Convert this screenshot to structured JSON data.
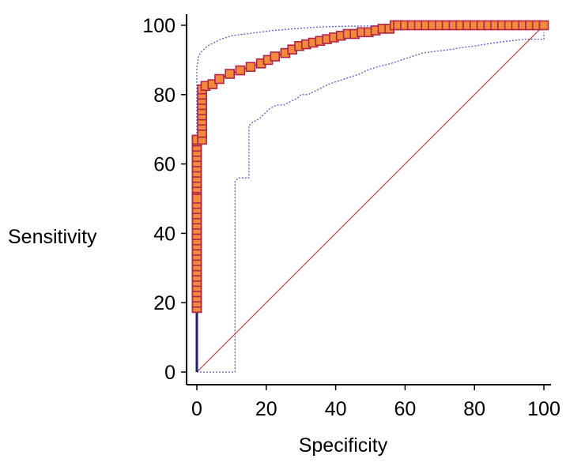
{
  "chart_data": {
    "type": "line",
    "title": "",
    "xlabel": "Specificity",
    "ylabel": "Sensitivity",
    "xlim": [
      0,
      100
    ],
    "ylim": [
      0,
      100
    ],
    "xticks": [
      0,
      20,
      40,
      60,
      80,
      100
    ],
    "yticks": [
      0,
      20,
      40,
      60,
      80,
      100
    ],
    "grid": false,
    "colors": {
      "roc_marker_fill": "#f28a3c",
      "roc_marker_stroke": "#b2234a",
      "roc_line": "#1f1f7a",
      "ci_line": "#5a5ad2",
      "reference_line": "#c0504d"
    },
    "series": [
      {
        "name": "ROC curve",
        "style": "step-markers",
        "x": [
          0,
          0,
          0,
          0,
          0,
          0,
          0,
          0,
          0,
          0,
          0,
          0,
          0,
          0,
          0,
          0,
          0,
          0,
          0,
          0,
          0,
          0,
          0,
          0,
          0,
          0,
          0,
          0,
          0,
          0,
          0,
          0,
          0,
          0,
          0,
          0,
          0,
          0,
          0,
          0,
          0,
          0,
          0,
          0,
          0,
          0,
          0,
          0,
          0,
          0,
          0,
          0,
          0,
          0,
          0,
          0,
          0,
          0,
          0,
          0,
          0,
          0,
          0,
          0,
          0,
          0,
          0,
          0,
          0,
          0,
          0,
          0,
          0,
          0,
          0,
          0,
          0,
          0,
          0,
          0,
          0,
          0,
          0,
          0,
          0,
          0,
          0,
          0,
          0,
          0,
          1.5,
          1.5,
          1.5,
          1.5,
          1.5,
          1.5,
          1.5,
          1.5,
          1.5,
          1.5,
          2.5,
          4.5,
          6.5,
          9.5,
          12.5,
          15.5,
          18.5,
          20.5,
          22.5,
          25.5,
          27.5,
          29.5,
          31.5,
          33.5,
          35.5,
          37.5,
          39.5,
          41.5,
          43.5,
          45.5,
          47.5,
          49.5,
          51.5,
          53.5,
          55.5,
          57,
          58,
          60,
          62,
          64,
          66,
          68,
          70,
          72,
          74,
          76,
          78,
          80,
          82,
          84,
          86,
          88,
          90,
          92,
          94,
          96,
          98,
          100
        ],
        "y": [
          18.5,
          20,
          21.5,
          23,
          24.5,
          26,
          27.5,
          29,
          30.5,
          32,
          33.5,
          35,
          36.5,
          38,
          39.5,
          41,
          42.5,
          44,
          45.5,
          47,
          48.5,
          50,
          51.5,
          53,
          54.5,
          56,
          57.5,
          59,
          60.5,
          62,
          63.5,
          65,
          66.5,
          67,
          18.5,
          20,
          21.5,
          23,
          24.5,
          26,
          27.5,
          29,
          30.5,
          32,
          33.5,
          35,
          36.5,
          38,
          39.5,
          41,
          42.5,
          44,
          45.5,
          47,
          48.5,
          50,
          51.5,
          53,
          54.5,
          56,
          57.5,
          59,
          60.5,
          62,
          63.5,
          65,
          66.5,
          67,
          18.5,
          20,
          21.5,
          23,
          24.5,
          26,
          27.5,
          29,
          30.5,
          32,
          33.5,
          35,
          36.5,
          38,
          39.5,
          41,
          42.5,
          44,
          45.5,
          47,
          48.5,
          50,
          67,
          69,
          71,
          72.5,
          74,
          75.5,
          77,
          78.5,
          80,
          81.5,
          82.5,
          83,
          84.5,
          86,
          87,
          88,
          89,
          90,
          91,
          92,
          93,
          94,
          94.5,
          95,
          95.5,
          96,
          96.5,
          97,
          97.5,
          97.5,
          98,
          98,
          98.5,
          99,
          99,
          100,
          100,
          100,
          100,
          100,
          100,
          100,
          100,
          100,
          100,
          100,
          100,
          100,
          100,
          100,
          100,
          100,
          100,
          100,
          100,
          100,
          100,
          100
        ]
      },
      {
        "name": "95% CI upper",
        "style": "dotted",
        "x": [
          0,
          0,
          0.5,
          1,
          2,
          3,
          5,
          7,
          10,
          14,
          18,
          22,
          28,
          35,
          42,
          50,
          55,
          57,
          100
        ],
        "y": [
          67,
          88,
          91,
          92,
          93,
          94,
          95,
          96,
          97,
          97.5,
          98,
          98.5,
          99,
          99.5,
          99.7,
          99.8,
          100,
          100,
          100
        ]
      },
      {
        "name": "95% CI lower",
        "style": "dotted",
        "x": [
          0,
          11,
          11,
          12,
          14,
          15,
          15,
          16,
          18,
          20,
          21,
          23,
          25,
          27,
          29,
          30,
          32,
          34,
          36,
          38,
          41,
          44,
          47,
          49,
          52,
          56,
          59,
          62,
          65,
          69,
          73,
          76,
          80,
          86,
          90,
          95,
          100,
          100
        ],
        "y": [
          0,
          0,
          55,
          56,
          56,
          56,
          71,
          72,
          73,
          75,
          76,
          77,
          77,
          78,
          79,
          80,
          80,
          81,
          82,
          83,
          84,
          85,
          86,
          87,
          88,
          89,
          90,
          91,
          92,
          92.5,
          93,
          93.5,
          94,
          95,
          95.5,
          96,
          96,
          98
        ]
      },
      {
        "name": "Reference line",
        "style": "line",
        "x": [
          0,
          100
        ],
        "y": [
          0,
          100
        ]
      }
    ]
  }
}
